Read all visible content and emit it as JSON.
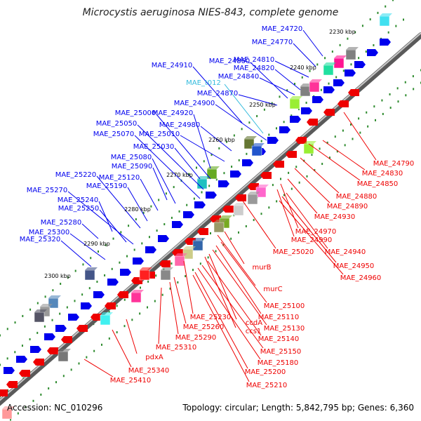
{
  "title": "Microcystis aeruginosa NIES-843, complete genome",
  "footer": {
    "accession": "Accession: NC_010296",
    "summary": "Topology: circular; Length: 5,842,795 bp; Genes: 6,360"
  },
  "colors": {
    "plus_strand": "#0000ee",
    "minus_strand": "#ee0000",
    "rna": "#33bbdd",
    "backbone": "#8a8a8a",
    "tick": "#2e8b2e"
  },
  "kbp_marks": [
    "2230 kbp",
    "2240 kbp",
    "2250 kbp",
    "2260 kbp",
    "2270 kbp",
    "2280 kbp",
    "2290 kbp",
    "2300 kbp"
  ],
  "upper_labels": [
    "MAE_24720",
    "MAE_24770",
    "MAE_24810",
    "MAE_24820",
    "MAE_24860",
    "MAE_24910",
    "MAE_24840",
    "MAE_t012",
    "MAE_24870",
    "MAE_24900",
    "MAE_24920",
    "MAE_25000",
    "MAE_24980",
    "MAE_25050",
    "MAE_25010",
    "MAE_25070",
    "MAE_25030",
    "MAE_25080",
    "MAE_25090",
    "MAE_25120",
    "MAE_25220",
    "MAE_25190",
    "MAE_25270",
    "MAE_25240",
    "MAE_25250",
    "MAE_25280",
    "MAE_25300",
    "MAE_25320"
  ],
  "lower_labels": [
    "MAE_24790",
    "MAE_24830",
    "MAE_24850",
    "MAE_24880",
    "MAE_24890",
    "MAE_24930",
    "MAE_24970",
    "MAE_24990",
    "MAE_25020",
    "MAE_24940",
    "MAE_24950",
    "MAE_24960",
    "murB",
    "murC",
    "MAE_25100",
    "MAE_25110",
    "MAE_25130",
    "MAE_25230",
    "ccdA",
    "ccs1",
    "MAE_25140",
    "MAE_25150",
    "MAE_25260",
    "MAE_25290",
    "MAE_25180",
    "MAE_25310",
    "MAE_25200",
    "pdxA",
    "MAE_25210",
    "MAE_25340",
    "MAE_25410"
  ]
}
